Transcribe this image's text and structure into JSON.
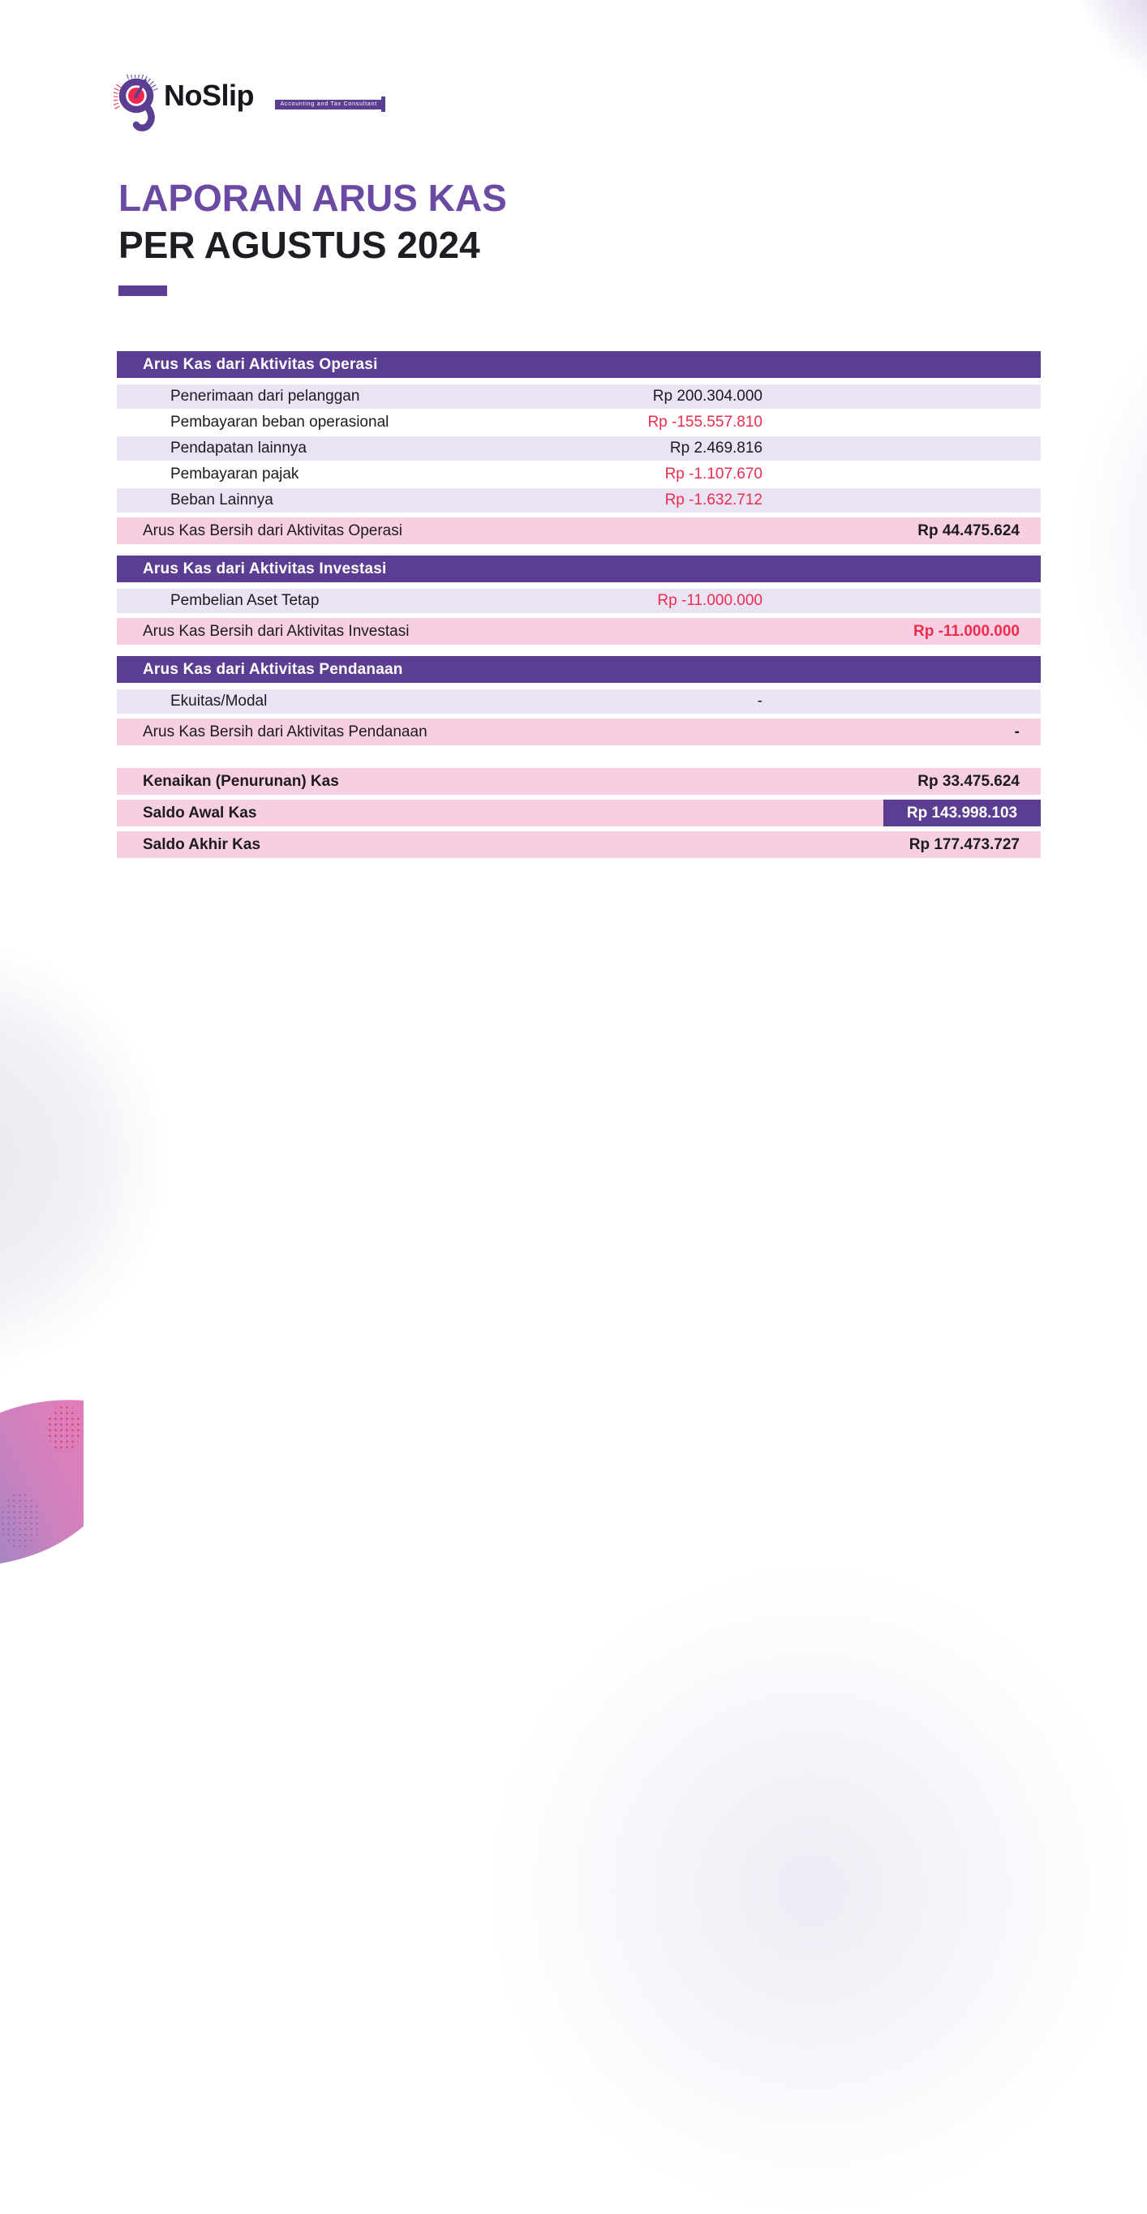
{
  "logo": {
    "brand": "NoSlip",
    "tagline": "Accounting and Tax Consultant"
  },
  "title": {
    "line1": "LAPORAN ARUS KAS",
    "line2": "PER AGUSTUS 2024"
  },
  "colors": {
    "purple": "#5b3e91",
    "title_purple": "#6a4aa2",
    "lavender_row": "#e9e3f4",
    "pink_row": "#f7cfe3",
    "negative_red": "#ee2c4e"
  },
  "sections": [
    {
      "header": "Arus Kas dari Aktivitas Operasi",
      "rows": [
        {
          "label": "Penerimaan dari pelanggan",
          "value": "Rp 200.304.000",
          "negative": false
        },
        {
          "label": "Pembayaran beban operasional",
          "value": "Rp -155.557.810",
          "negative": true
        },
        {
          "label": "Pendapatan lainnya",
          "value": "Rp 2.469.816",
          "negative": false
        },
        {
          "label": "Pembayaran pajak",
          "value": "Rp -1.107.670",
          "negative": true
        },
        {
          "label": "Beban Lainnya",
          "value": "Rp -1.632.712",
          "negative": true
        }
      ],
      "net": {
        "label": "Arus Kas Bersih dari Aktivitas Operasi",
        "value": "Rp 44.475.624",
        "negative": false
      }
    },
    {
      "header": "Arus Kas dari Aktivitas Investasi",
      "rows": [
        {
          "label": "Pembelian Aset Tetap",
          "value": "Rp -11.000.000",
          "negative": true
        }
      ],
      "net": {
        "label": "Arus Kas Bersih dari Aktivitas Investasi",
        "value": "Rp -11.000.000",
        "negative": true
      }
    },
    {
      "header": "Arus Kas dari Aktivitas Pendanaan",
      "rows": [
        {
          "label": "Ekuitas/Modal",
          "value": "-",
          "negative": false
        }
      ],
      "net": {
        "label": "Arus Kas Bersih dari Aktivitas Pendanaan",
        "value": "-",
        "negative": false
      }
    }
  ],
  "summary": [
    {
      "label": "Kenaikan (Penurunan) Kas",
      "value": "Rp 33.475.624",
      "badge": false
    },
    {
      "label": "Saldo Awal Kas",
      "value": "Rp 143.998.103",
      "badge": true
    },
    {
      "label": "Saldo Akhir Kas",
      "value": "Rp 177.473.727",
      "badge": false
    }
  ]
}
